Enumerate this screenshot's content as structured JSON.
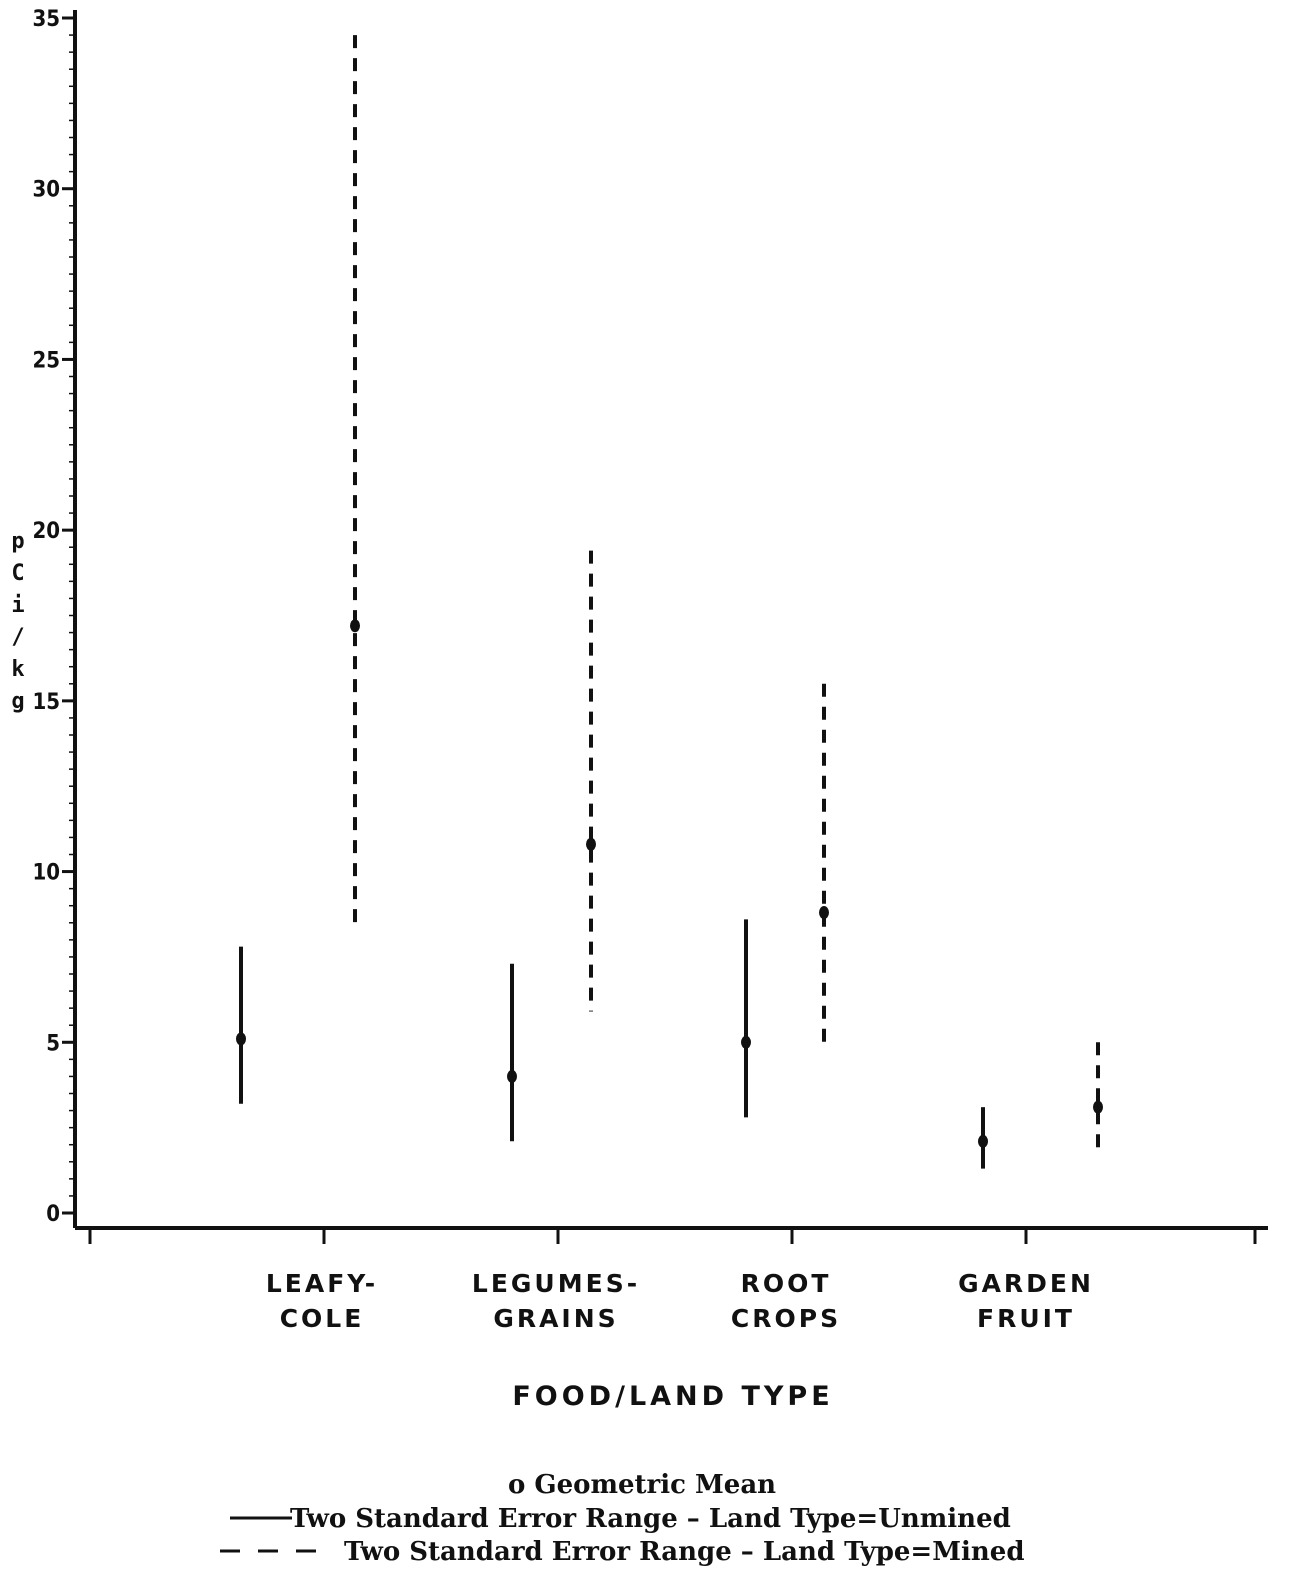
{
  "chart_data": {
    "type": "errorbar",
    "xlabel": "FOOD/LAND TYPE",
    "ylabel": "pCi/kg",
    "ylim": [
      0,
      35
    ],
    "yticks": [
      0,
      5,
      10,
      15,
      20,
      25,
      30,
      35
    ],
    "grid": false,
    "categories": [
      [
        "LEAFY-",
        "COLE"
      ],
      [
        "LEGUMES-",
        "GRAINS"
      ],
      [
        "ROOT",
        "CROPS"
      ],
      [
        "GARDEN",
        "FRUIT"
      ]
    ],
    "series": [
      {
        "name": "Land Type=Unmined",
        "style": "solid",
        "points": [
          {
            "mean": 5.1,
            "low": 3.2,
            "high": 7.8
          },
          {
            "mean": 4.0,
            "low": 2.1,
            "high": 7.3
          },
          {
            "mean": 5.0,
            "low": 2.8,
            "high": 8.6
          },
          {
            "mean": 2.1,
            "low": 1.3,
            "high": 3.1
          }
        ]
      },
      {
        "name": "Land Type=Mined",
        "style": "dashed",
        "points": [
          {
            "mean": 17.2,
            "low": 8.5,
            "high": 34.5
          },
          {
            "mean": 10.8,
            "low": 5.9,
            "high": 19.4
          },
          {
            "mean": 8.8,
            "low": 5.0,
            "high": 15.5
          },
          {
            "mean": 3.1,
            "low": 1.9,
            "high": 5.0
          }
        ]
      }
    ],
    "legend": {
      "mean": "o  Geometric Mean",
      "unmined": "Two Standard Error Range  –  Land Type=Unmined",
      "mined": "Two Standard Error Range  –  Land Type=Mined"
    }
  }
}
